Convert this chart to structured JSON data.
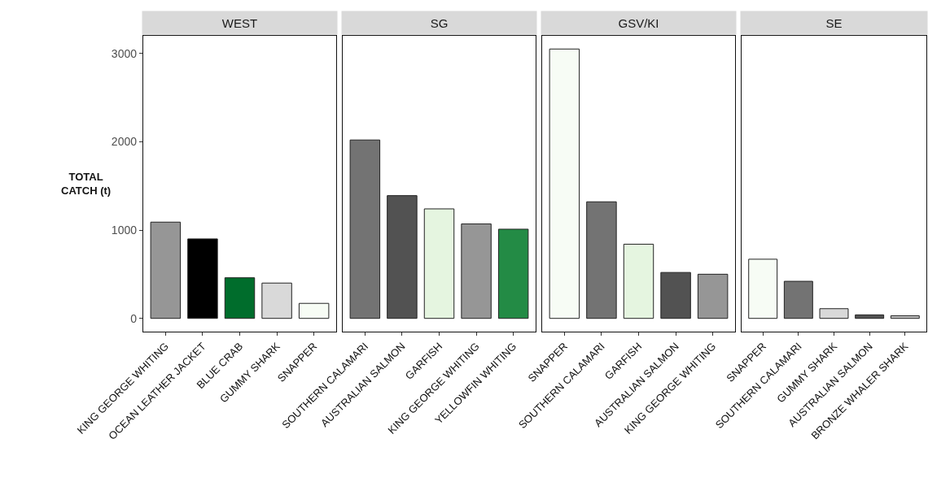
{
  "chart_data": [
    {
      "type": "bar",
      "title": "WEST",
      "ylabel": "TOTAL\nCATCH (t)",
      "categories": [
        "KING GEORGE WHITING",
        "OCEAN LEATHER JACKET",
        "BLUE CRAB",
        "GUMMY SHARK",
        "SNAPPER"
      ],
      "values": [
        1090,
        900,
        460,
        400,
        170
      ],
      "colors": [
        "#969696",
        "#000000",
        "#006d2c",
        "#d9d9d9",
        "#f7fcf5"
      ],
      "ylim": [
        -150,
        3200
      ],
      "yticks": [
        0,
        1000,
        2000,
        3000
      ]
    },
    {
      "type": "bar",
      "title": "SG",
      "categories": [
        "SOUTHERN CALAMARI",
        "AUSTRALIAN SALMON",
        "GARFISH",
        "KING GEORGE WHITING",
        "YELLOWFIN WHITING"
      ],
      "values": [
        2020,
        1390,
        1240,
        1070,
        1010
      ],
      "colors": [
        "#737373",
        "#525252",
        "#e5f5e0",
        "#969696",
        "#238b45"
      ],
      "ylim": [
        -150,
        3200
      ],
      "yticks": [
        0,
        1000,
        2000,
        3000
      ],
      "tick_labels": "x"
    },
    {
      "type": "bar",
      "title": "GSV/KI",
      "categories": [
        "SNAPPER",
        "SOUTHERN CALAMARI",
        "GARFISH",
        "AUSTRALIAN SALMON",
        "KING GEORGE WHITING"
      ],
      "values": [
        3050,
        1320,
        840,
        520,
        500
      ],
      "colors": [
        "#f7fcf5",
        "#737373",
        "#e5f5e0",
        "#525252",
        "#969696"
      ],
      "ylim": [
        -150,
        3200
      ],
      "yticks": [
        0,
        1000,
        2000,
        3000
      ],
      "tick_labels": "x"
    },
    {
      "type": "bar",
      "title": "SE",
      "categories": [
        "SNAPPER",
        "SOUTHERN CALAMARI",
        "GUMMY SHARK",
        "AUSTRALIAN SALMON",
        "BRONZE WHALER SHARK"
      ],
      "values": [
        670,
        420,
        110,
        40,
        30
      ],
      "colors": [
        "#f7fcf5",
        "#737373",
        "#d9d9d9",
        "#525252",
        "#bdbdbd"
      ],
      "ylim": [
        -150,
        3200
      ],
      "yticks": [
        0,
        1000,
        2000,
        3000
      ],
      "tick_labels": "x"
    }
  ]
}
